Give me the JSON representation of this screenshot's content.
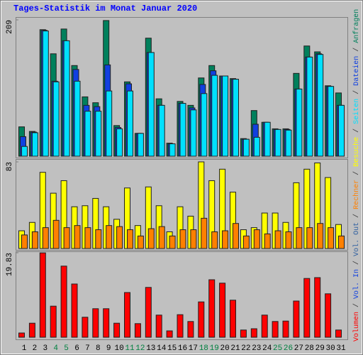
{
  "chart_data": [
    {
      "type": "bar",
      "title": "Tages-Statistik im Monat Januar 2020",
      "ylim": [
        0,
        209
      ],
      "yticks": [
        209
      ],
      "series": [
        {
          "name": "Anfragen",
          "color": "#00805c",
          "values": [
            45,
            38,
            194,
            157,
            195,
            139,
            91,
            82,
            208,
            47,
            114,
            35,
            181,
            88,
            20,
            84,
            78,
            120,
            139,
            123,
            119,
            27,
            70,
            52,
            42,
            42,
            127,
            169,
            160,
            108,
            97
          ]
        },
        {
          "name": "Dateien",
          "color": "#1040e0",
          "values": [
            30,
            37,
            193,
            115,
            177,
            133,
            78,
            76,
            140,
            44,
            111,
            35,
            159,
            78,
            19,
            81,
            74,
            110,
            131,
            123,
            118,
            26,
            49,
            52,
            41,
            41,
            103,
            152,
            157,
            107,
            78
          ]
        },
        {
          "name": "Seiten",
          "color": "#00e0ff",
          "values": [
            15,
            36,
            192,
            114,
            177,
            115,
            69,
            69,
            100,
            42,
            100,
            35,
            159,
            78,
            19,
            81,
            71,
            96,
            124,
            123,
            118,
            26,
            29,
            52,
            41,
            40,
            103,
            152,
            156,
            107,
            78
          ]
        }
      ]
    },
    {
      "type": "bar",
      "ylim": [
        0,
        83
      ],
      "yticks": [
        83
      ],
      "series": [
        {
          "name": "Besuche",
          "color": "#ffff00",
          "values": [
            17,
            25,
            73,
            53,
            65,
            40,
            41,
            48,
            40,
            28,
            58,
            22,
            59,
            41,
            16,
            40,
            31,
            83,
            65,
            76,
            54,
            18,
            20,
            34,
            34,
            25,
            63,
            76,
            82,
            68,
            23
          ]
        },
        {
          "name": "Rechner",
          "color": "#ff8000",
          "values": [
            13,
            16,
            20,
            27,
            20,
            22,
            20,
            18,
            22,
            21,
            18,
            12,
            19,
            21,
            12,
            18,
            18,
            29,
            16,
            17,
            24,
            12,
            18,
            14,
            17,
            16,
            20,
            20,
            24,
            20,
            12
          ]
        }
      ]
    },
    {
      "type": "bar",
      "ylim": [
        0,
        19.83
      ],
      "yticks": [
        19.83
      ],
      "series": [
        {
          "name": "Volumen",
          "color": "#ff0000",
          "values": [
            1.0,
            3.3,
            19.8,
            7.3,
            16.7,
            12.5,
            4.7,
            6.7,
            6.7,
            3.3,
            10.5,
            3.2,
            11.7,
            5.2,
            1.5,
            5.3,
            3.7,
            8.3,
            13.5,
            12.7,
            8.7,
            1.7,
            2.0,
            5.2,
            3.7,
            3.8,
            8.5,
            13.8,
            14.0,
            10.2,
            1.7
          ]
        }
      ],
      "legend_extra": [
        {
          "name": "Vol. In",
          "color": "#1040e0"
        },
        {
          "name": "Vol. Out",
          "color": "#3060a0"
        }
      ],
      "categories": [
        "1",
        "2",
        "3",
        "4",
        "5",
        "6",
        "7",
        "8",
        "9",
        "10",
        "11",
        "12",
        "13",
        "14",
        "15",
        "16",
        "17",
        "18",
        "19",
        "20",
        "21",
        "22",
        "23",
        "24",
        "25",
        "26",
        "27",
        "28",
        "29",
        "30",
        "31"
      ],
      "category_colors": [
        "#000000",
        "#000000",
        "#000000",
        "#008040",
        "#008040",
        "#000000",
        "#000000",
        "#000000",
        "#000000",
        "#000000",
        "#008040",
        "#008040",
        "#000000",
        "#000000",
        "#000000",
        "#000000",
        "#000000",
        "#008040",
        "#008040",
        "#000000",
        "#000000",
        "#000000",
        "#000000",
        "#000000",
        "#008040",
        "#008040",
        "#000000",
        "#000000",
        "#000000",
        "#000000",
        "#000000"
      ]
    }
  ],
  "legend_separator": " / "
}
